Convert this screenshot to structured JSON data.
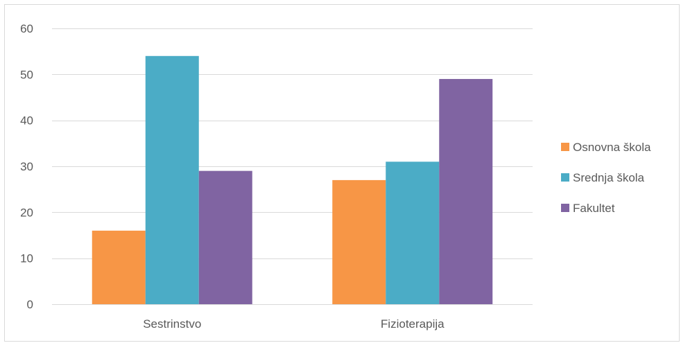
{
  "chart_data": {
    "type": "bar",
    "title": "",
    "xlabel": "",
    "ylabel": "",
    "categories": [
      "Sestrinstvo",
      "Fizioterapija"
    ],
    "series": [
      {
        "name": "Osnovna škola",
        "values": [
          16,
          27
        ],
        "color": "#F79646"
      },
      {
        "name": "Srednja škola",
        "values": [
          54,
          31
        ],
        "color": "#4BACC6"
      },
      {
        "name": "Fakultet",
        "values": [
          29,
          49
        ],
        "color": "#8064A2"
      }
    ],
    "ylim": [
      0,
      60
    ],
    "yticks": [
      0,
      10,
      20,
      30,
      40,
      50,
      60
    ],
    "grid": true,
    "legend_position": "right"
  }
}
